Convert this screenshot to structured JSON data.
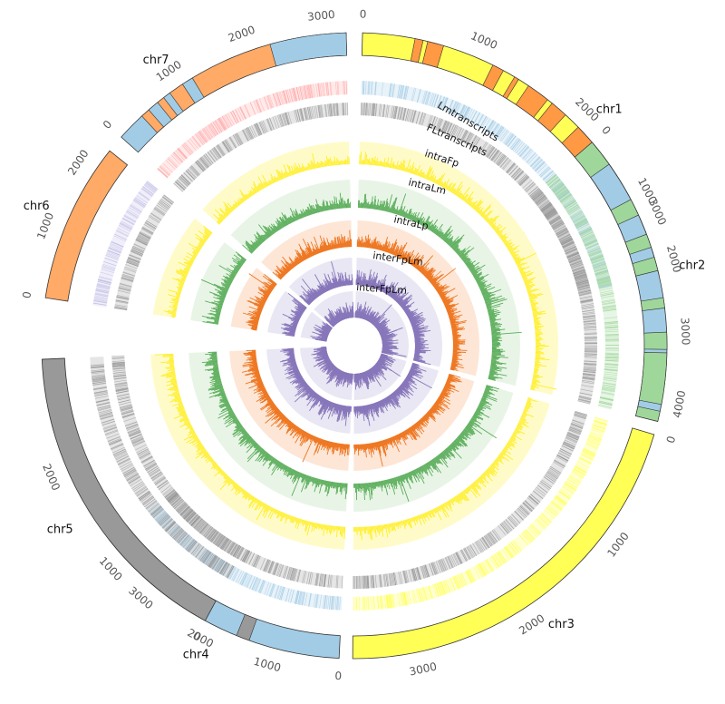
{
  "chart_data": {
    "type": "circos",
    "chromosomes": [
      {
        "name": "chr1",
        "length": 3500,
        "color": "#ffff55",
        "ticks": [
          0,
          1000,
          2000,
          3000
        ],
        "bands": [
          [
            450,
            520,
            "#ff9944"
          ],
          [
            560,
            700,
            "#ff9944"
          ],
          [
            1150,
            1250,
            "#ff9944"
          ],
          [
            1360,
            1400,
            "#ff9944"
          ],
          [
            1500,
            1700,
            "#ff9944"
          ],
          [
            1750,
            1900,
            "#ff9944"
          ],
          [
            2050,
            2300,
            "#ff9944"
          ],
          [
            2350,
            2500,
            "#ff9944"
          ]
        ]
      },
      {
        "name": "chr2",
        "length": 4300,
        "color": "#a2cce6",
        "ticks": [
          0,
          1000,
          2000,
          3000,
          4000
        ],
        "bands": [
          [
            0,
            400,
            "#9fd79a"
          ],
          [
            1000,
            1250,
            "#9fd79a"
          ],
          [
            1550,
            1750,
            "#9fd79a"
          ],
          [
            1900,
            2100,
            "#9fd79a"
          ],
          [
            2500,
            2650,
            "#9fd79a"
          ],
          [
            3000,
            3250,
            "#9fd79a"
          ],
          [
            3300,
            4050,
            "#9fd79a"
          ],
          [
            4150,
            4300,
            "#9fd79a"
          ]
        ]
      },
      {
        "name": "chr3",
        "length": 3600,
        "color": "#ffff55",
        "ticks": [
          0,
          1000,
          2000,
          3000
        ],
        "bands": []
      },
      {
        "name": "chr4",
        "length": 3900,
        "color": "#a2cce6",
        "ticks": [
          0,
          1000,
          2000,
          3000
        ],
        "bands": [
          [
            1350,
            1550,
            "#999999"
          ],
          [
            2500,
            2700,
            "#999999"
          ],
          [
            2780,
            2900,
            "#999999"
          ],
          [
            2950,
            3100,
            "#999999"
          ]
        ]
      },
      {
        "name": "chr5",
        "length": 3100,
        "color": "#999999",
        "ticks": [
          0,
          1000,
          2000
        ],
        "bands": []
      },
      {
        "name": "chr6",
        "length": 2400,
        "color": "#ffaa66",
        "ticks": [
          0,
          1000,
          2000
        ],
        "bands": []
      },
      {
        "name": "chr7",
        "length": 3300,
        "color": "#ffaa66",
        "ticks": [
          0,
          1000,
          2000,
          3000
        ],
        "bands": [
          [
            0,
            380,
            "#a2cce6"
          ],
          [
            500,
            650,
            "#a2cce6"
          ],
          [
            750,
            850,
            "#a2cce6"
          ],
          [
            1050,
            1200,
            "#a2cce6"
          ],
          [
            2300,
            3300,
            "#a2cce6"
          ]
        ]
      }
    ],
    "tracks": [
      {
        "name": "Lmtranscripts",
        "type": "density",
        "colors": {
          "chr1": "#a2cce6",
          "chr2": "#9fd79a",
          "chr3": "#ffff55",
          "chr4": "#a2cce6",
          "chr5": "#999999",
          "chr6": "#c2bfe6",
          "chr7": "#ffaaaa"
        }
      },
      {
        "name": "FLtranscripts",
        "type": "density",
        "colors": {
          "chr1": "#999999",
          "chr2": "#999999",
          "chr3": "#999999",
          "chr4": "#999999",
          "chr5": "#999999",
          "chr6": "#999999",
          "chr7": "#999999"
        }
      },
      {
        "name": "intraFp",
        "type": "histogram",
        "color": "#ffee22",
        "bg": "#fffbc8"
      },
      {
        "name": "intraLm",
        "type": "histogram",
        "color": "#5aad5a",
        "bg": "#e8f5e6"
      },
      {
        "name": "intraLp",
        "type": "histogram",
        "color": "#ee7722",
        "bg": "#fde6d6"
      },
      {
        "name": "interFpLm",
        "type": "histogram",
        "color": "#8877bb",
        "bg": "#e9e7f3"
      },
      {
        "name": "interFpLm",
        "type": "histogram",
        "color": "#8877bb",
        "bg": "#e9e7f3"
      }
    ]
  }
}
